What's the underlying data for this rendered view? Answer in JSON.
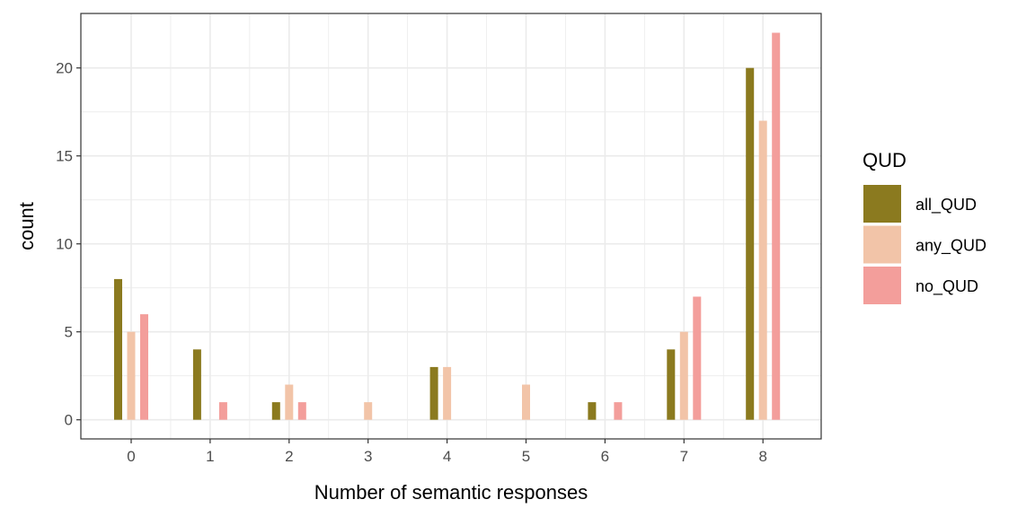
{
  "chart_data": {
    "type": "bar",
    "title": "",
    "xlabel": "Number of semantic responses",
    "ylabel": "count",
    "categories": [
      "0",
      "1",
      "2",
      "3",
      "4",
      "5",
      "6",
      "7",
      "8"
    ],
    "series": [
      {
        "name": "all_QUD",
        "color": "#8B7A1F",
        "values": [
          8,
          4,
          1,
          0,
          3,
          0,
          1,
          4,
          20
        ]
      },
      {
        "name": "any_QUD",
        "color": "#F2C4A8",
        "values": [
          5,
          0,
          2,
          1,
          3,
          2,
          0,
          5,
          17
        ]
      },
      {
        "name": "no_QUD",
        "color": "#F39E9B",
        "values": [
          6,
          1,
          1,
          0,
          0,
          0,
          1,
          7,
          22
        ]
      }
    ],
    "ylim": [
      0,
      22
    ],
    "yticks": [
      0,
      5,
      10,
      15,
      20
    ],
    "grid": true,
    "legend": {
      "title": "QUD",
      "position": "right"
    }
  }
}
